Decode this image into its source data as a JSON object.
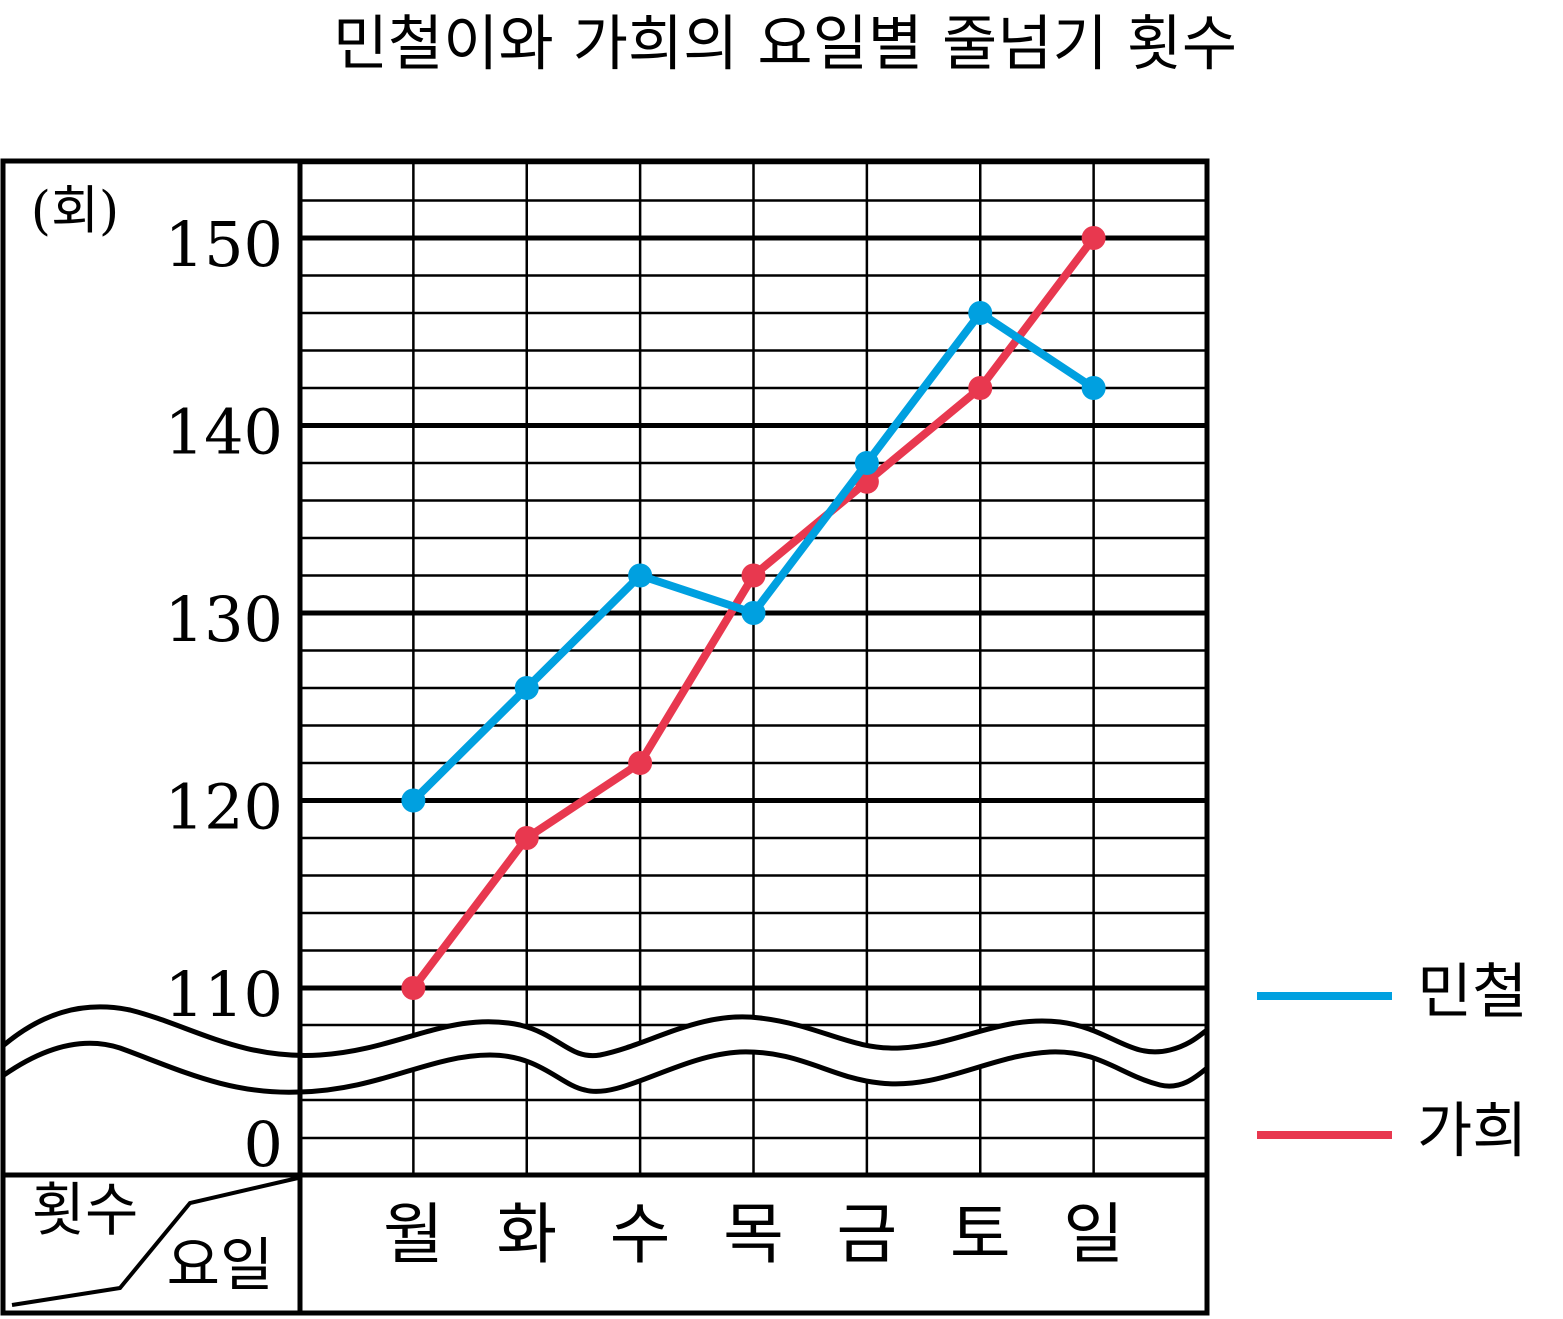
{
  "chart_data": {
    "type": "line",
    "title": "민철이와 가희의 요일별 줄넘기 횟수",
    "y_unit": "(회)",
    "corner_top": "횟수",
    "corner_bottom": "요일",
    "categories": [
      "월",
      "화",
      "수",
      "목",
      "금",
      "토",
      "일"
    ],
    "series": [
      {
        "name": "민철",
        "color": "#00a0e0",
        "values": [
          120,
          126,
          132,
          130,
          138,
          146,
          142
        ]
      },
      {
        "name": "가희",
        "color": "#e8384f",
        "values": [
          110,
          118,
          122,
          132,
          137,
          142,
          150
        ]
      }
    ],
    "ylim": [
      0,
      154
    ],
    "ybreak": [
      0,
      110
    ],
    "yticks": [
      0,
      110,
      120,
      130,
      140,
      150
    ],
    "minor_grid_step": 2,
    "grid": true,
    "legend": "right"
  }
}
